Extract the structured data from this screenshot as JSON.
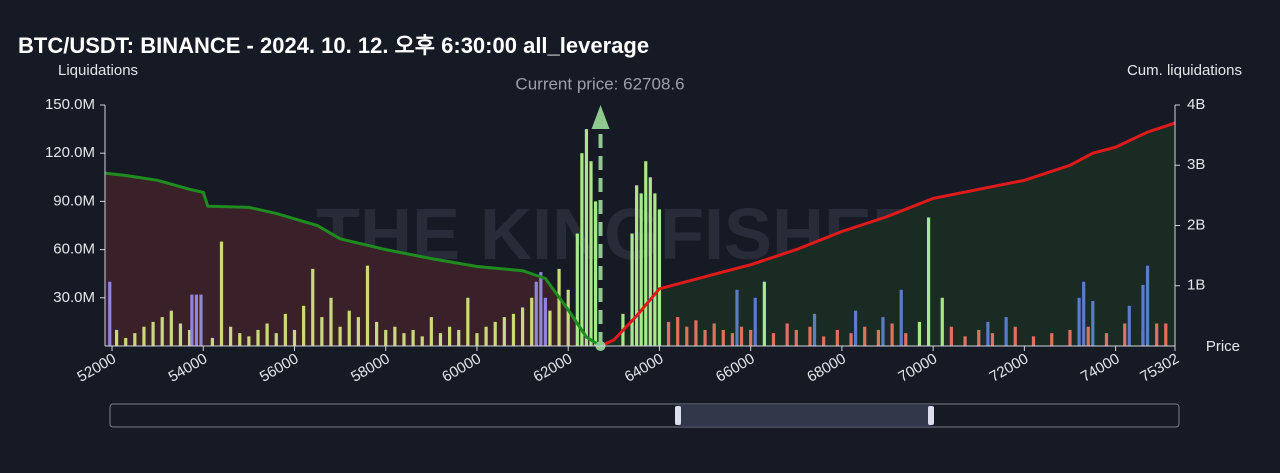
{
  "chart_data": {
    "type": "combo",
    "title": "BTC/USDT: BINANCE - 2024. 10. 12. 오후 6:30:00 all_leverage",
    "ylabel": "Liquidations",
    "y2label": "Cum. liquidations",
    "xlabel": "Price",
    "watermark": "THE KINGFISHER",
    "current_price": 62708.6,
    "current_price_label": "Current price: 62708.6",
    "xlim": [
      51846,
      75302
    ],
    "xticks": [
      52000,
      54000,
      56000,
      58000,
      60000,
      62000,
      64000,
      66000,
      68000,
      70000,
      72000,
      74000,
      75302
    ],
    "ylim": [
      0,
      150
    ],
    "yticks": [
      {
        "value": 30,
        "label": "30.0M"
      },
      {
        "value": 60,
        "label": "60.0M"
      },
      {
        "value": 90,
        "label": "90.0M"
      },
      {
        "value": 120,
        "label": "120.0M"
      },
      {
        "value": 150,
        "label": "150.0M"
      }
    ],
    "y2lim": [
      0,
      4
    ],
    "y2ticks": [
      {
        "value": 1,
        "label": "1B"
      },
      {
        "value": 2,
        "label": "2B"
      },
      {
        "value": 3,
        "label": "3B"
      },
      {
        "value": 4,
        "label": "4B"
      }
    ],
    "series": [
      {
        "type": "area-line",
        "axis": "y2",
        "color": "#1e8c1e",
        "fill": "#3a2029",
        "x": [
          51846,
          52300,
          53000,
          53700,
          54000,
          54100,
          55000,
          55600,
          56500,
          57000,
          58000,
          59000,
          60000,
          61000,
          61500,
          62000,
          62400,
          62708.6
        ],
        "values": [
          2.87,
          2.83,
          2.75,
          2.6,
          2.55,
          2.32,
          2.3,
          2.2,
          2.0,
          1.78,
          1.6,
          1.45,
          1.32,
          1.25,
          1.12,
          0.6,
          0.15,
          0
        ]
      },
      {
        "type": "area-line",
        "axis": "y2",
        "color": "#e01a1a",
        "fill": "#1a2b24",
        "x": [
          62708.6,
          63000,
          63500,
          64000,
          65000,
          66000,
          67000,
          68000,
          69000,
          70000,
          71000,
          72000,
          73000,
          73500,
          74000,
          74700,
          75302
        ],
        "values": [
          0,
          0.1,
          0.5,
          0.95,
          1.15,
          1.35,
          1.6,
          1.9,
          2.15,
          2.45,
          2.6,
          2.75,
          3.0,
          3.2,
          3.3,
          3.55,
          3.7
        ]
      },
      {
        "type": "bar",
        "color": "#c9d97c",
        "x": [
          52100,
          52300,
          52500,
          52700,
          52900,
          53100,
          53300,
          53500,
          53700,
          54200,
          54400,
          54600,
          54800,
          55000,
          55200,
          55400,
          55600,
          55800,
          56000,
          56200,
          56400,
          56600,
          56800,
          57000,
          57200,
          57400,
          57600,
          57800,
          58000,
          58200,
          58400,
          58600,
          58800,
          59000,
          59200,
          59400,
          59600,
          59800,
          60000,
          60200,
          60400,
          60600,
          60800,
          61000,
          61200,
          61600,
          61800,
          62000
        ],
        "values": [
          10,
          5,
          8,
          12,
          15,
          18,
          22,
          14,
          10,
          5,
          65,
          12,
          8,
          6,
          10,
          14,
          8,
          20,
          10,
          25,
          48,
          18,
          30,
          12,
          22,
          18,
          50,
          15,
          10,
          12,
          8,
          10,
          6,
          18,
          8,
          12,
          10,
          30,
          8,
          12,
          15,
          18,
          20,
          24,
          30,
          22,
          48,
          35
        ]
      },
      {
        "type": "bar",
        "color": "#8f86d8",
        "x": [
          51950,
          53750,
          53850,
          53950,
          61300,
          61400,
          61500
        ],
        "values": [
          40,
          32,
          32,
          32,
          40,
          46,
          30
        ]
      },
      {
        "type": "bar",
        "color": "#a8e88a",
        "x": [
          62200,
          62300,
          62400,
          62500,
          62600,
          63200,
          63400,
          63500,
          63600,
          63700,
          63800,
          63900,
          64000,
          66300,
          69700,
          69900,
          70200
        ],
        "values": [
          70,
          120,
          135,
          115,
          90,
          20,
          70,
          100,
          95,
          115,
          105,
          95,
          85,
          40,
          15,
          80,
          30
        ]
      },
      {
        "type": "bar",
        "color": "#e07060",
        "x": [
          64200,
          64400,
          64600,
          64800,
          65000,
          65200,
          65400,
          65600,
          65800,
          66000,
          66500,
          66800,
          67000,
          67300,
          67600,
          67900,
          68200,
          68500,
          68800,
          69100,
          69400,
          70400,
          70700,
          71000,
          71300,
          71800,
          72200,
          72600,
          73000,
          73400,
          73800,
          74200,
          74600,
          74900,
          75100
        ],
        "values": [
          15,
          18,
          12,
          16,
          10,
          14,
          10,
          8,
          12,
          10,
          8,
          14,
          10,
          12,
          6,
          10,
          8,
          12,
          10,
          14,
          8,
          12,
          6,
          10,
          8,
          12,
          6,
          8,
          10,
          12,
          8,
          14,
          10,
          14,
          14
        ]
      },
      {
        "type": "bar",
        "color": "#5b7cc8",
        "x": [
          65700,
          66100,
          67400,
          68300,
          68900,
          69300,
          71200,
          71600,
          73200,
          73300,
          73500,
          74300,
          74600,
          74700
        ],
        "values": [
          35,
          30,
          20,
          22,
          18,
          35,
          15,
          18,
          30,
          40,
          28,
          25,
          38,
          50
        ]
      }
    ]
  }
}
